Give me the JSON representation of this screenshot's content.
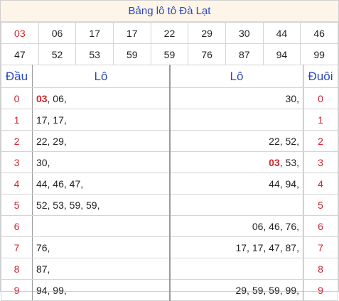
{
  "title": "Bảng lô tô Đà Lạt",
  "numbers_row1": [
    "03",
    "06",
    "17",
    "17",
    "22",
    "29",
    "30",
    "44",
    "46"
  ],
  "numbers_row2": [
    "47",
    "52",
    "53",
    "59",
    "59",
    "76",
    "87",
    "94",
    "99"
  ],
  "highlight_number": "03",
  "headers": {
    "dau": "Đầu",
    "lo_left": "Lô",
    "lo_right": "Lô",
    "duoi": "Đuôi"
  },
  "rows": [
    {
      "dau": "0",
      "lo_left": [
        {
          "t": "03",
          "hl": true
        },
        {
          "t": ", 06,",
          "hl": false
        }
      ],
      "lo_right": [
        {
          "t": "30,",
          "hl": false
        }
      ],
      "duoi": "0"
    },
    {
      "dau": "1",
      "lo_left": [
        {
          "t": "17, 17,",
          "hl": false
        }
      ],
      "lo_right": [],
      "duoi": "1"
    },
    {
      "dau": "2",
      "lo_left": [
        {
          "t": "22, 29,",
          "hl": false
        }
      ],
      "lo_right": [
        {
          "t": "22, 52,",
          "hl": false
        }
      ],
      "duoi": "2"
    },
    {
      "dau": "3",
      "lo_left": [
        {
          "t": "30,",
          "hl": false
        }
      ],
      "lo_right": [
        {
          "t": "03",
          "hl": true
        },
        {
          "t": ", 53,",
          "hl": false
        }
      ],
      "duoi": "3"
    },
    {
      "dau": "4",
      "lo_left": [
        {
          "t": "44, 46, 47,",
          "hl": false
        }
      ],
      "lo_right": [
        {
          "t": "44, 94,",
          "hl": false
        }
      ],
      "duoi": "4"
    },
    {
      "dau": "5",
      "lo_left": [
        {
          "t": "52, 53, 59, 59,",
          "hl": false
        }
      ],
      "lo_right": [],
      "duoi": "5"
    },
    {
      "dau": "6",
      "lo_left": [],
      "lo_right": [
        {
          "t": "06, 46, 76,",
          "hl": false
        }
      ],
      "duoi": "6"
    },
    {
      "dau": "7",
      "lo_left": [
        {
          "t": "76,",
          "hl": false
        }
      ],
      "lo_right": [
        {
          "t": "17, 17, 47, 87,",
          "hl": false
        }
      ],
      "duoi": "7"
    },
    {
      "dau": "8",
      "lo_left": [
        {
          "t": "87,",
          "hl": false
        }
      ],
      "lo_right": [],
      "duoi": "8"
    },
    {
      "dau": "9",
      "lo_left": [
        {
          "t": "94, 99,",
          "hl": false
        }
      ],
      "lo_right": [
        {
          "t": "29, 59, 59, 99,",
          "hl": false
        }
      ],
      "duoi": "9"
    }
  ],
  "colors": {
    "accent_blue": "#2a46c8",
    "highlight_red": "#d8232a",
    "title_bg": "#fdf5e8"
  }
}
